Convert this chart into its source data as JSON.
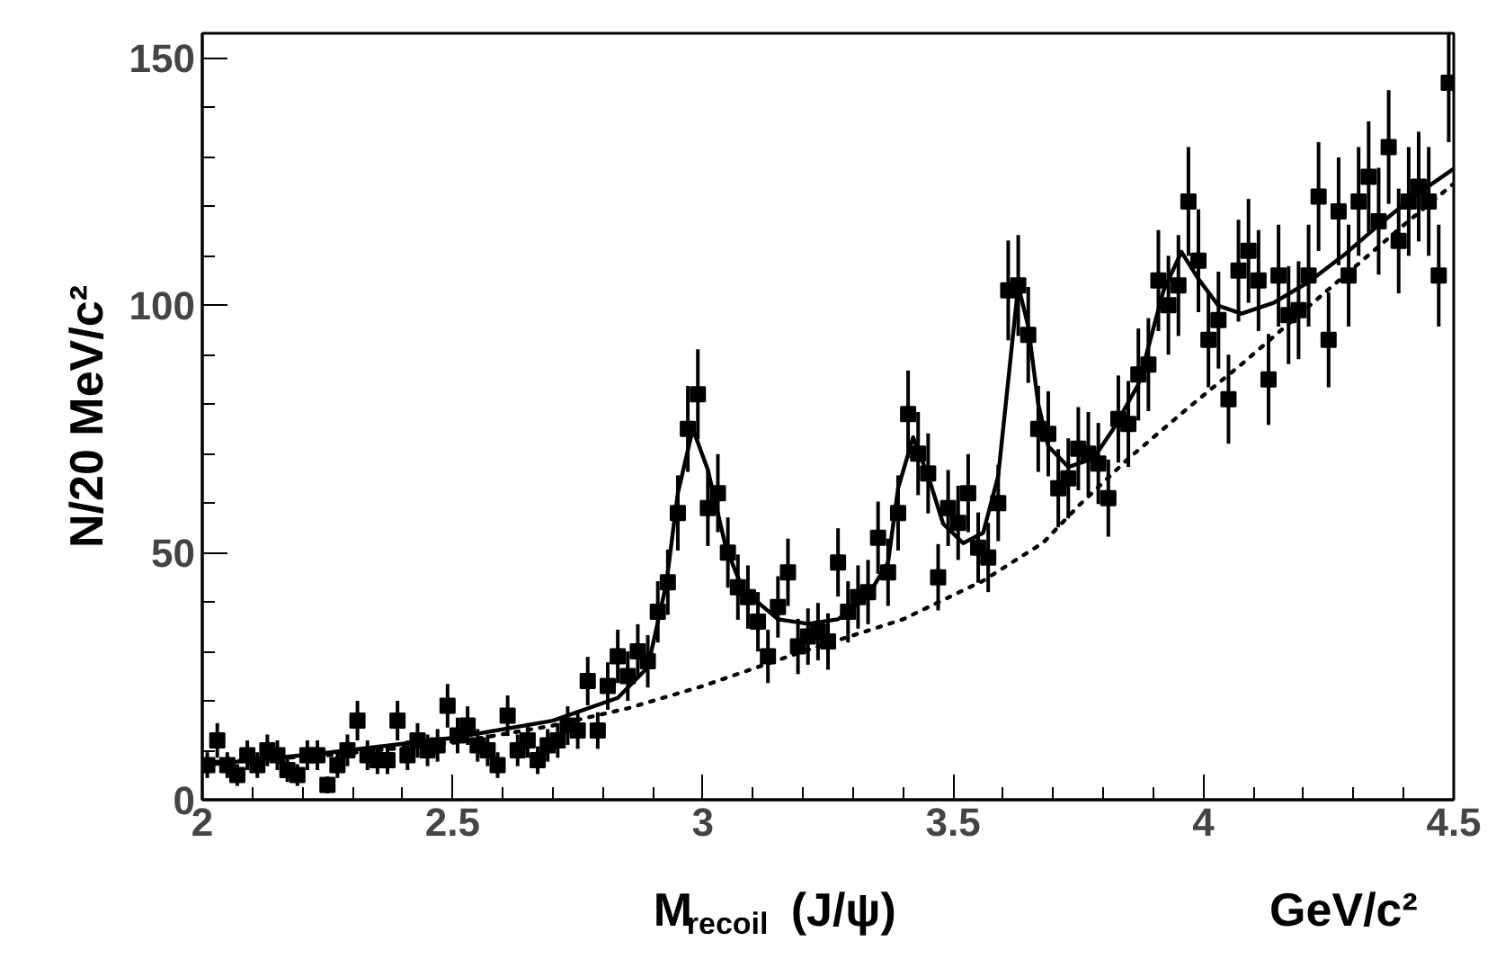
{
  "chart_data": {
    "type": "scatter",
    "ylabel": "N/20 MeV/c²",
    "xlabel": "M$_{recoil}$(J/ψ)",
    "annotations": [
      "GeV/c²"
    ],
    "xlim": [
      2,
      4.5
    ],
    "ylim": [
      0,
      155
    ],
    "xticks": [
      2,
      2.5,
      3,
      3.5,
      4,
      4.5
    ],
    "yticks": [
      0,
      50,
      100,
      150
    ],
    "series": [
      {
        "type": "scatter",
        "color": "#000000",
        "marker": "square",
        "x": [
          2.01,
          2.03,
          2.05,
          2.07,
          2.09,
          2.11,
          2.13,
          2.15,
          2.17,
          2.19,
          2.21,
          2.23,
          2.25,
          2.27,
          2.29,
          2.31,
          2.33,
          2.35,
          2.37,
          2.39,
          2.41,
          2.43,
          2.45,
          2.47,
          2.49,
          2.51,
          2.53,
          2.55,
          2.57,
          2.59,
          2.61,
          2.63,
          2.65,
          2.67,
          2.69,
          2.71,
          2.73,
          2.75,
          2.77,
          2.79,
          2.81,
          2.83,
          2.85,
          2.87,
          2.89,
          2.91,
          2.93,
          2.95,
          2.97,
          2.99,
          3.01,
          3.03,
          3.05,
          3.07,
          3.09,
          3.11,
          3.13,
          3.15,
          3.17,
          3.19,
          3.21,
          3.23,
          3.25,
          3.27,
          3.29,
          3.31,
          3.33,
          3.35,
          3.37,
          3.39,
          3.41,
          3.43,
          3.45,
          3.47,
          3.49,
          3.51,
          3.53,
          3.55,
          3.57,
          3.59,
          3.61,
          3.63,
          3.65,
          3.67,
          3.69,
          3.71,
          3.73,
          3.75,
          3.77,
          3.79,
          3.81,
          3.83,
          3.85,
          3.87,
          3.89,
          3.91,
          3.93,
          3.95,
          3.97,
          3.99,
          4.01,
          4.03,
          4.05,
          4.07,
          4.09,
          4.11,
          4.13,
          4.15,
          4.17,
          4.19,
          4.21,
          4.23,
          4.25,
          4.27,
          4.29,
          4.31,
          4.33,
          4.35,
          4.37,
          4.39,
          4.41,
          4.43,
          4.45,
          4.47,
          4.49
        ],
        "values": [
          7,
          12,
          7,
          5,
          9,
          7,
          10,
          9,
          6,
          5,
          9,
          9,
          3,
          7,
          10,
          16,
          9,
          8,
          8,
          16,
          9,
          12,
          10,
          11,
          19,
          13,
          15,
          11,
          10,
          7,
          17,
          10,
          12,
          8,
          11,
          12,
          15,
          14,
          24,
          14,
          23,
          29,
          25,
          30,
          28,
          38,
          44,
          58,
          75,
          82,
          59,
          62,
          50,
          43,
          41,
          36,
          29,
          39,
          46,
          31,
          33,
          34,
          32,
          48,
          38,
          41,
          42,
          53,
          46,
          58,
          78,
          70,
          66,
          45,
          59,
          56,
          62,
          51,
          49,
          60,
          103,
          104,
          94,
          75,
          74,
          63,
          65,
          71,
          70,
          68,
          61,
          77,
          76,
          86,
          88,
          105,
          100,
          104,
          121,
          109,
          93,
          97,
          81,
          107,
          111,
          105,
          85,
          106,
          98,
          99,
          106,
          122,
          93,
          119,
          106,
          121,
          126,
          117,
          132,
          113,
          121,
          124,
          121,
          106,
          145
        ],
        "errors": [
          2.6,
          3.5,
          2.6,
          2.2,
          3,
          2.6,
          3.2,
          3,
          2.4,
          2.2,
          3,
          3,
          1.7,
          2.6,
          3.2,
          4,
          3,
          2.8,
          2.8,
          4,
          3,
          3.5,
          3.2,
          3.3,
          4.4,
          3.6,
          3.9,
          3.3,
          3.2,
          2.6,
          4.1,
          3.2,
          3.5,
          2.8,
          3.3,
          3.5,
          3.9,
          3.7,
          4.9,
          3.7,
          4.8,
          5.4,
          5,
          5.5,
          5.3,
          6.2,
          6.6,
          7.6,
          8.7,
          9.1,
          7.7,
          7.9,
          7.1,
          6.6,
          6.4,
          6,
          5.4,
          6.2,
          6.8,
          5.6,
          5.7,
          5.8,
          5.7,
          6.9,
          6.2,
          6.4,
          6.5,
          7.3,
          6.8,
          7.6,
          8.8,
          8.4,
          8.1,
          6.7,
          7.7,
          7.5,
          7.9,
          7.1,
          7,
          7.7,
          10.1,
          10.2,
          9.7,
          8.7,
          8.6,
          7.9,
          8.1,
          8.4,
          8.4,
          8.2,
          7.8,
          8.8,
          8.7,
          9.3,
          9.4,
          10.2,
          10,
          10.2,
          11,
          10.4,
          9.6,
          9.8,
          9,
          10.3,
          10.5,
          10.2,
          9.2,
          10.3,
          9.9,
          9.9,
          10.3,
          11,
          9.6,
          10.9,
          10.3,
          11,
          11.2,
          10.8,
          11.5,
          10.6,
          11,
          11.1,
          11,
          10.3,
          12
        ]
      },
      {
        "type": "line",
        "color": "#000000",
        "line_style": "solid",
        "x": [
          2.0,
          2.25,
          2.5,
          2.7,
          2.83,
          2.89,
          2.927,
          2.95,
          2.98,
          3.01,
          3.046,
          3.08,
          3.15,
          3.21,
          3.27,
          3.33,
          3.37,
          3.39,
          3.42,
          3.45,
          3.48,
          3.52,
          3.56,
          3.59,
          3.615,
          3.63,
          3.65,
          3.67,
          3.69,
          3.73,
          3.78,
          3.82,
          3.87,
          3.92,
          3.956,
          3.99,
          4.03,
          4.076,
          4.14,
          4.21,
          4.28,
          4.35,
          4.42,
          4.5
        ],
        "values": [
          7,
          9.5,
          12.5,
          16,
          20.6,
          26.8,
          43.7,
          62,
          75,
          66.7,
          51,
          42.5,
          36.5,
          35.6,
          36.5,
          41.3,
          48,
          63,
          73.3,
          65.5,
          55.8,
          51.9,
          54,
          65.5,
          89.6,
          104,
          95.7,
          80,
          71.5,
          67.3,
          69,
          75,
          84,
          102.9,
          110.8,
          105.3,
          99.9,
          98.3,
          100.5,
          104.7,
          110.1,
          116.2,
          122,
          127.6
        ]
      },
      {
        "type": "line",
        "color": "#000000",
        "line_style": "dotted",
        "x": [
          2.0,
          2.25,
          2.5,
          2.7,
          2.85,
          3.0,
          3.2,
          3.4,
          3.56,
          3.68,
          3.75,
          3.85,
          3.97,
          4.08,
          4.26,
          4.4,
          4.5
        ],
        "values": [
          7.5,
          9,
          11.5,
          15,
          18.5,
          23,
          30,
          36.5,
          44.3,
          52,
          59.4,
          69,
          79.3,
          88.4,
          104.1,
          116.2,
          124.6
        ]
      }
    ]
  }
}
